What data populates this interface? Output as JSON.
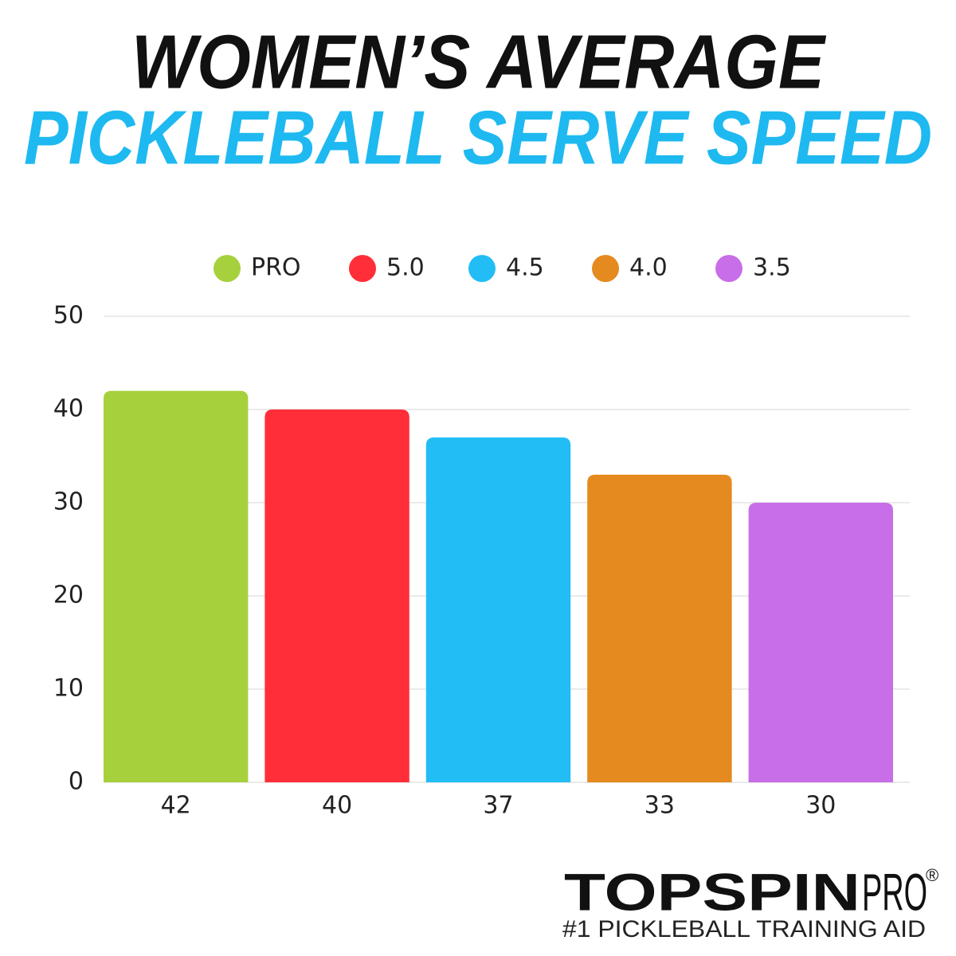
{
  "chart_data": {
    "type": "bar",
    "title": "WOMEN’S AVERAGE",
    "subtitle": "PICKLEBALL SERVE SPEED",
    "series": [
      {
        "name": "PRO",
        "color": "#a6d13d",
        "values": [
          42
        ]
      },
      {
        "name": "5.0",
        "color": "#ff2e38",
        "values": [
          40
        ]
      },
      {
        "name": "4.5",
        "color": "#22bdf5",
        "values": [
          37
        ]
      },
      {
        "name": "4.0",
        "color": "#e48a1e",
        "values": [
          33
        ]
      },
      {
        "name": "3.5",
        "color": "#c86ee8",
        "values": [
          30
        ]
      }
    ],
    "ylim": [
      0,
      50
    ],
    "yticks": [
      0,
      10,
      20,
      30,
      40,
      50
    ],
    "grid": true,
    "legend": "top"
  },
  "logo": {
    "brand": "TOPSPIN",
    "suffix": "PRO",
    "registered": "®",
    "tagline": "#1 PICKLEBALL TRAINING AID"
  }
}
